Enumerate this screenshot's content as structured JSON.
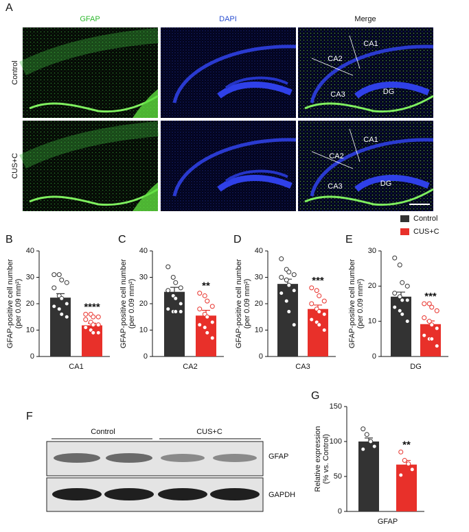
{
  "micrographs": {
    "panel": "A",
    "columns": [
      "GFAP",
      "DAPI",
      "Merge"
    ],
    "rows": [
      "Control",
      "CUS+C"
    ],
    "regions": [
      [
        "CA1",
        "CA2",
        "CA3",
        "DG"
      ],
      [
        "CA1",
        "CA2",
        "CA3",
        "DG"
      ]
    ]
  },
  "legend": [
    {
      "name": "Control",
      "color": "#333333"
    },
    {
      "name": "CUS+C",
      "color": "#e8302a"
    }
  ],
  "blot": {
    "panel": "F",
    "groups": [
      "Control",
      "CUS+C"
    ],
    "bands": [
      "GFAP",
      "GAPDH"
    ]
  },
  "chart_data": [
    {
      "type": "bar",
      "panel": "B",
      "categories": [
        "CA1"
      ],
      "ylabel": [
        "GFAP-positive cell number",
        "(per 0.09 mm²)"
      ],
      "ylim": [
        0,
        40
      ],
      "yticks": [
        0,
        10,
        20,
        30,
        40
      ],
      "annotation": "****",
      "series": [
        {
          "color": "#333333",
          "values": [
            22.3
          ],
          "errors": [
            1.5
          ],
          "points": [
            [
              31,
              31,
              29,
              28,
              26,
              23,
              22,
              20,
              19,
              18,
              16,
              15
            ]
          ]
        },
        {
          "color": "#e8302a",
          "values": [
            11.8
          ],
          "errors": [
            0.8
          ],
          "points": [
            [
              16,
              16,
              15,
              15,
              14,
              13,
              12,
              12,
              11,
              10,
              9,
              9
            ]
          ]
        }
      ]
    },
    {
      "type": "bar",
      "panel": "C",
      "categories": [
        "CA2"
      ],
      "ylabel": [
        "GFAP-positive cell number",
        "(per 0.09 mm²)"
      ],
      "ylim": [
        0,
        40
      ],
      "yticks": [
        0,
        10,
        20,
        30,
        40
      ],
      "annotation": "**",
      "series": [
        {
          "color": "#333333",
          "values": [
            24.5
          ],
          "errors": [
            1.7
          ],
          "points": [
            [
              34,
              30,
              28,
              26,
              25,
              23,
              22,
              20,
              18,
              17,
              17,
              17
            ]
          ]
        },
        {
          "color": "#e8302a",
          "values": [
            15.5
          ],
          "errors": [
            2.0
          ],
          "points": [
            [
              24,
              23,
              21,
              19,
              18,
              16,
              15,
              13,
              12,
              11,
              9,
              7
            ]
          ]
        }
      ]
    },
    {
      "type": "bar",
      "panel": "D",
      "categories": [
        "CA3"
      ],
      "ylabel": [
        "GFAP-positive cell number",
        "(per 0.09 mm²)"
      ],
      "ylim": [
        0,
        40
      ],
      "yticks": [
        0,
        10,
        20,
        30,
        40
      ],
      "annotation": "***",
      "series": [
        {
          "color": "#333333",
          "values": [
            27.5
          ],
          "errors": [
            1.8
          ],
          "points": [
            [
              37,
              33,
              32,
              31,
              30,
              29,
              27,
              25,
              24,
              21,
              17,
              12
            ]
          ]
        },
        {
          "color": "#e8302a",
          "values": [
            18
          ],
          "errors": [
            1.5
          ],
          "points": [
            [
              26,
              25,
              23,
              21,
              20,
              18,
              17,
              16,
              14,
              13,
              12,
              10
            ]
          ]
        }
      ]
    },
    {
      "type": "bar",
      "panel": "E",
      "categories": [
        "DG"
      ],
      "ylabel": [
        "GFAP-positive cell number",
        "(per 0.09 mm²)"
      ],
      "ylim": [
        0,
        30
      ],
      "yticks": [
        0,
        10,
        20,
        30
      ],
      "annotation": "***",
      "series": [
        {
          "color": "#333333",
          "values": [
            17
          ],
          "errors": [
            1.3
          ],
          "points": [
            [
              28,
              26,
              21,
              20,
              18,
              17,
              16,
              16,
              14,
              13,
              12,
              10
            ]
          ]
        },
        {
          "color": "#e8302a",
          "values": [
            9.2
          ],
          "errors": [
            0.9
          ],
          "points": [
            [
              15,
              15,
              14,
              13,
              11,
              10,
              9,
              8,
              6,
              5,
              5,
              3
            ]
          ]
        }
      ]
    },
    {
      "type": "bar",
      "panel": "G",
      "categories": [
        "GFAP"
      ],
      "ylabel": [
        "Relative expression",
        "(% vs. Control)"
      ],
      "ylim": [
        0,
        150
      ],
      "yticks": [
        0,
        50,
        100,
        150
      ],
      "annotation": "**",
      "series": [
        {
          "color": "#333333",
          "values": [
            100
          ],
          "errors": [
            5
          ],
          "points": [
            [
              118,
              110,
              100,
              93,
              89
            ]
          ]
        },
        {
          "color": "#e8302a",
          "values": [
            67
          ],
          "errors": [
            6
          ],
          "points": [
            [
              85,
              73,
              68,
              60,
              52
            ]
          ]
        }
      ]
    }
  ]
}
